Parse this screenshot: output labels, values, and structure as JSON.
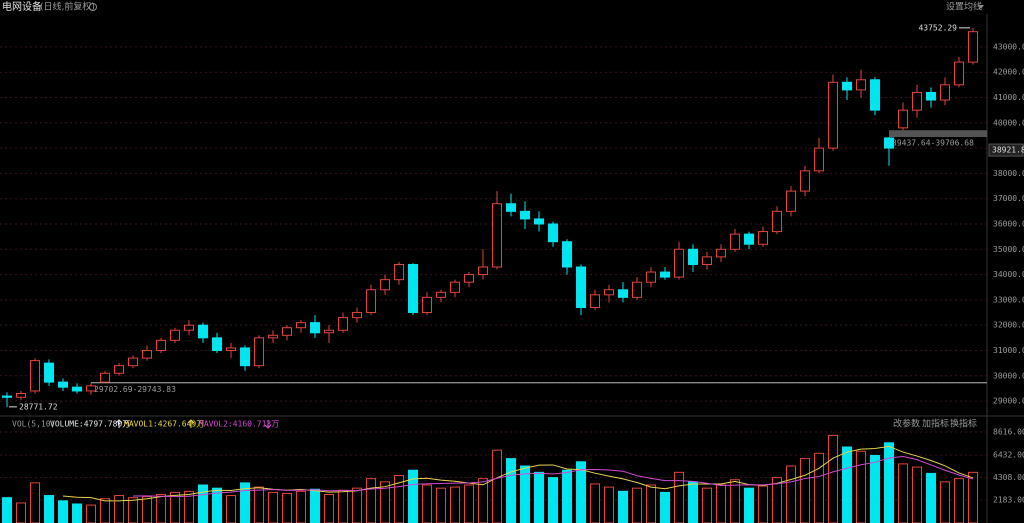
{
  "header": {
    "title": "电网设备",
    "subtitle": "(日线,前复权)",
    "ma_button": "设置均线"
  },
  "toolbar": [
    "改参数",
    "加指标",
    "换指标"
  ],
  "chart_data": [
    {
      "type": "candlestick",
      "up_color": "#e0463a",
      "down_color": "#00e6f0",
      "grid": true,
      "ylim": [
        28450,
        44300
      ],
      "yticks": [
        {
          "value": 29000,
          "label": "29000.00"
        },
        {
          "value": 30000,
          "label": "30000.00"
        },
        {
          "value": 31000,
          "label": "31000.00"
        },
        {
          "value": 32000,
          "label": "32000.00"
        },
        {
          "value": 33000,
          "label": "33000.00"
        },
        {
          "value": 34000,
          "label": "34000.00"
        },
        {
          "value": 35000,
          "label": "35000.00"
        },
        {
          "value": 36000,
          "label": "36000.00"
        },
        {
          "value": 37000,
          "label": "37000.00"
        },
        {
          "value": 38000,
          "label": "38000.00"
        },
        {
          "value": 39000,
          "label": "39000.00"
        },
        {
          "value": 40000,
          "label": "40000.00"
        },
        {
          "value": 41000,
          "label": "41000.00"
        },
        {
          "value": 42000,
          "label": "42000.00"
        },
        {
          "value": 43000,
          "label": "43000.00"
        }
      ],
      "open": [
        29200,
        29150,
        29400,
        30500,
        29750,
        29550,
        29400,
        29750,
        30100,
        30400,
        30700,
        31000,
        31400,
        31800,
        32000,
        31500,
        31000,
        31100,
        30400,
        31500,
        31600,
        31900,
        32100,
        31700,
        31800,
        32300,
        32500,
        33400,
        33800,
        34400,
        32500,
        33100,
        33300,
        33700,
        34000,
        34300,
        36800,
        36500,
        36200,
        36000,
        35300,
        34300,
        32700,
        33200,
        33400,
        33100,
        33700,
        34100,
        33900,
        35000,
        34400,
        34700,
        35000,
        35600,
        35200,
        35700,
        36500,
        37300,
        38100,
        39000,
        41600,
        41300,
        41700,
        39400,
        39800,
        40500,
        41200,
        40900,
        41500,
        42400
      ],
      "high": [
        29350,
        29400,
        30700,
        30650,
        29900,
        29700,
        29700,
        30200,
        30500,
        30800,
        31200,
        31500,
        31900,
        32200,
        32100,
        31700,
        31300,
        31200,
        31600,
        31800,
        32000,
        32200,
        32400,
        32000,
        32500,
        32700,
        33600,
        34000,
        34500,
        34450,
        33300,
        33400,
        33800,
        34100,
        35000,
        37300,
        37200,
        36900,
        36500,
        36100,
        35400,
        34400,
        33400,
        33600,
        33700,
        33900,
        34300,
        34300,
        35300,
        35200,
        34900,
        35200,
        35800,
        35700,
        35900,
        36700,
        37500,
        38300,
        39400,
        41900,
        41800,
        42100,
        41800,
        39437.64,
        40800,
        41500,
        41400,
        41800,
        42600,
        43752.29
      ],
      "low": [
        28771.72,
        29050,
        29300,
        29600,
        29400,
        29300,
        29250,
        29745,
        30000,
        30300,
        30600,
        30900,
        31300,
        31600,
        31300,
        30900,
        30700,
        30200,
        30300,
        31300,
        31400,
        31700,
        31500,
        31300,
        31700,
        32100,
        32400,
        33200,
        33600,
        32400,
        32400,
        32900,
        33100,
        33500,
        33800,
        34200,
        36300,
        35800,
        35700,
        35100,
        34000,
        32400,
        32600,
        32900,
        32900,
        33000,
        33500,
        33800,
        33800,
        34100,
        34200,
        34500,
        34900,
        35000,
        35100,
        35600,
        36300,
        37100,
        38000,
        38900,
        40900,
        41000,
        40300,
        38300,
        39706.68,
        40200,
        40600,
        40700,
        41400,
        42300
      ],
      "close": [
        29150,
        29300,
        30600,
        29750,
        29550,
        29400,
        29600,
        30100,
        30400,
        30700,
        31000,
        31400,
        31800,
        32000,
        31500,
        31000,
        31100,
        30400,
        31500,
        31600,
        31900,
        32100,
        31700,
        31800,
        32300,
        32500,
        33400,
        33800,
        34400,
        32500,
        33100,
        33300,
        33700,
        34000,
        34300,
        36800,
        36500,
        36200,
        36000,
        35300,
        34300,
        32700,
        33200,
        33400,
        33100,
        33700,
        34100,
        33900,
        35000,
        34400,
        34700,
        35000,
        35600,
        35200,
        35700,
        36500,
        37300,
        38100,
        39000,
        41600,
        41300,
        41700,
        40500,
        39000,
        40500,
        41200,
        40900,
        41500,
        42400,
        43600
      ],
      "extremes": [
        {
          "label": "43752.29",
          "value": 43752.29
        },
        {
          "label": "28771.72",
          "value": 28771.72
        }
      ],
      "gaps": [
        {
          "label": "29702.69-29743.83",
          "range": [
            29702.69,
            29743.83
          ]
        },
        {
          "label": "39437.64-39706.68",
          "range": [
            39437.64,
            39706.68
          ]
        }
      ],
      "crosshair_value": 38921.8
    },
    {
      "type": "bar",
      "indicator": "VOL(5,10)",
      "name": "VOLUME:4797.780万",
      "color": "#e8e8e8",
      "ylim": [
        0,
        9000
      ],
      "yticks": [
        {
          "value": 2183,
          "label": "2183.00"
        },
        {
          "value": 4308,
          "label": "4308.00"
        },
        {
          "value": 6432,
          "label": "6432.00"
        },
        {
          "value": 8616,
          "label": "8616.00"
        }
      ],
      "values": [
        2400,
        1900,
        3800,
        2600,
        2100,
        1800,
        1700,
        2300,
        2600,
        2400,
        2500,
        2700,
        2900,
        3000,
        3600,
        3300,
        2600,
        3800,
        3400,
        2900,
        2800,
        3000,
        3200,
        2700,
        3100,
        3300,
        4200,
        3900,
        4500,
        5000,
        3600,
        3300,
        3400,
        3600,
        4200,
        6900,
        6100,
        5400,
        4800,
        4300,
        5000,
        5800,
        3700,
        3400,
        3000,
        3300,
        3600,
        2900,
        4800,
        3900,
        3300,
        3600,
        4100,
        3300,
        3500,
        4300,
        5400,
        6100,
        6600,
        8300,
        7200,
        6800,
        6400,
        7600,
        5600,
        5300,
        4700,
        3900,
        4200,
        4797.78
      ],
      "series": [
        {
          "name": "MAVOL1:4267.649万",
          "color": "#e8d44d",
          "values": [
            null,
            null,
            null,
            null,
            2560,
            2440,
            2400,
            2100,
            2100,
            2160,
            2300,
            2500,
            2620,
            2700,
            2940,
            3100,
            3080,
            3260,
            3340,
            3200,
            3100,
            3180,
            3060,
            2920,
            2960,
            3060,
            3300,
            3440,
            3800,
            4180,
            4240,
            4060,
            3960,
            3780,
            3620,
            4280,
            4840,
            5200,
            5480,
            5500,
            5120,
            5060,
            4720,
            4440,
            4180,
            3840,
            3400,
            3240,
            3520,
            3700,
            3700,
            3700,
            3940,
            3640,
            3560,
            3760,
            4120,
            4520,
            5180,
            6140,
            6720,
            7000,
            7060,
            7260,
            6720,
            6340,
            5920,
            5420,
            4740,
            4267.649
          ]
        },
        {
          "name": "MAVOL2:4160.713万",
          "color": "#d24ad2",
          "values": [
            null,
            null,
            null,
            null,
            null,
            null,
            null,
            null,
            null,
            2560,
            2570,
            2540,
            2500,
            2540,
            2690,
            2840,
            2930,
            3080,
            3120,
            3170,
            3090,
            3120,
            3150,
            3060,
            3080,
            3080,
            3220,
            3290,
            3450,
            3660,
            3720,
            3740,
            3780,
            3790,
            3900,
            4240,
            4520,
            4650,
            4710,
            4640,
            4780,
            5040,
            5070,
            5020,
            4900,
            4480,
            4230,
            4020,
            4020,
            3940,
            3770,
            3550,
            3590,
            3620,
            3610,
            3720,
            3900,
            4220,
            4400,
            4840,
            5200,
            5520,
            5750,
            6160,
            6300,
            6000,
            5500,
            5000,
            4550,
            4160.713
          ]
        }
      ]
    }
  ]
}
